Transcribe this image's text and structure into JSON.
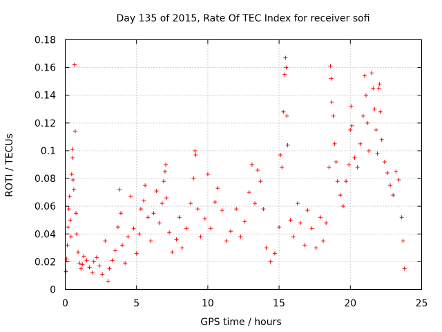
{
  "chart_data": {
    "type": "scatter",
    "title": "Day 135 of 2015, Rate Of TEC Index for receiver sofi",
    "xlabel": "GPS time / hours",
    "ylabel": "ROTI / TECUs",
    "xlim": [
      0,
      25
    ],
    "ylim": [
      0,
      0.18
    ],
    "xticks": [
      "0",
      "5",
      "10",
      "15",
      "20",
      "25"
    ],
    "yticks": [
      "0",
      "0.02",
      "0.04",
      "0.06",
      "0.08",
      "0.1",
      "0.12",
      "0.14",
      "0.16",
      "0.18"
    ],
    "grid": true,
    "marker": "plus",
    "color": "#ff0000",
    "series": [
      {
        "values": [
          [
            0.05,
            0.013
          ],
          [
            0.1,
            0.022
          ],
          [
            0.15,
            0.032
          ],
          [
            0.2,
            0.045
          ],
          [
            0.25,
            0.058
          ],
          [
            0.3,
            0.067
          ],
          [
            0.35,
            0.05
          ],
          [
            0.4,
            0.038
          ],
          [
            0.45,
            0.083
          ],
          [
            0.5,
            0.101
          ],
          [
            0.52,
            0.095
          ],
          [
            0.55,
            0.079
          ],
          [
            0.6,
            0.072
          ],
          [
            0.65,
            0.162
          ],
          [
            0.7,
            0.114
          ],
          [
            0.75,
            0.055
          ],
          [
            0.8,
            0.04
          ],
          [
            0.9,
            0.027
          ],
          [
            1.0,
            0.019
          ],
          [
            1.1,
            0.015
          ],
          [
            1.2,
            0.018
          ],
          [
            1.3,
            0.024
          ],
          [
            1.5,
            0.021
          ],
          [
            1.7,
            0.016
          ],
          [
            1.9,
            0.012
          ],
          [
            2.0,
            0.02
          ],
          [
            2.2,
            0.023
          ],
          [
            2.4,
            0.017
          ],
          [
            2.6,
            0.011
          ],
          [
            2.8,
            0.035
          ],
          [
            3.0,
            0.006
          ],
          [
            3.1,
            0.015
          ],
          [
            3.3,
            0.021
          ],
          [
            3.5,
            0.028
          ],
          [
            3.7,
            0.045
          ],
          [
            3.8,
            0.072
          ],
          [
            3.9,
            0.055
          ],
          [
            4.0,
            0.032
          ],
          [
            4.2,
            0.019
          ],
          [
            4.4,
            0.038
          ],
          [
            4.6,
            0.067
          ],
          [
            4.8,
            0.044
          ],
          [
            5.0,
            0.026
          ],
          [
            5.2,
            0.04
          ],
          [
            5.3,
            0.058
          ],
          [
            5.5,
            0.064
          ],
          [
            5.6,
            0.075
          ],
          [
            5.8,
            0.052
          ],
          [
            6.0,
            0.035
          ],
          [
            6.2,
            0.055
          ],
          [
            6.4,
            0.071
          ],
          [
            6.6,
            0.048
          ],
          [
            6.8,
            0.062
          ],
          [
            6.9,
            0.078
          ],
          [
            7.0,
            0.085
          ],
          [
            7.05,
            0.09
          ],
          [
            7.1,
            0.066
          ],
          [
            7.3,
            0.041
          ],
          [
            7.5,
            0.027
          ],
          [
            7.8,
            0.036
          ],
          [
            8.0,
            0.052
          ],
          [
            8.2,
            0.03
          ],
          [
            8.5,
            0.044
          ],
          [
            8.8,
            0.062
          ],
          [
            9.0,
            0.08
          ],
          [
            9.1,
            0.1
          ],
          [
            9.15,
            0.097
          ],
          [
            9.3,
            0.058
          ],
          [
            9.5,
            0.038
          ],
          [
            9.8,
            0.051
          ],
          [
            10.0,
            0.083
          ],
          [
            10.2,
            0.044
          ],
          [
            10.5,
            0.063
          ],
          [
            10.7,
            0.073
          ],
          [
            11.0,
            0.057
          ],
          [
            11.3,
            0.035
          ],
          [
            11.6,
            0.042
          ],
          [
            12.0,
            0.058
          ],
          [
            12.3,
            0.038
          ],
          [
            12.6,
            0.049
          ],
          [
            12.9,
            0.07
          ],
          [
            13.1,
            0.09
          ],
          [
            13.3,
            0.062
          ],
          [
            13.5,
            0.086
          ],
          [
            13.7,
            0.078
          ],
          [
            13.9,
            0.058
          ],
          [
            14.1,
            0.03
          ],
          [
            14.4,
            0.02
          ],
          [
            14.7,
            0.026
          ],
          [
            15.0,
            0.045
          ],
          [
            15.1,
            0.097
          ],
          [
            15.2,
            0.088
          ],
          [
            15.3,
            0.128
          ],
          [
            15.4,
            0.155
          ],
          [
            15.45,
            0.167
          ],
          [
            15.5,
            0.16
          ],
          [
            15.55,
            0.125
          ],
          [
            15.6,
            0.104
          ],
          [
            15.8,
            0.05
          ],
          [
            16.0,
            0.038
          ],
          [
            16.3,
            0.062
          ],
          [
            16.5,
            0.048
          ],
          [
            16.8,
            0.032
          ],
          [
            17.0,
            0.057
          ],
          [
            17.3,
            0.044
          ],
          [
            17.6,
            0.03
          ],
          [
            17.9,
            0.052
          ],
          [
            18.1,
            0.035
          ],
          [
            18.3,
            0.048
          ],
          [
            18.5,
            0.088
          ],
          [
            18.6,
            0.161
          ],
          [
            18.65,
            0.152
          ],
          [
            18.7,
            0.135
          ],
          [
            18.8,
            0.125
          ],
          [
            18.9,
            0.105
          ],
          [
            19.0,
            0.092
          ],
          [
            19.1,
            0.078
          ],
          [
            19.3,
            0.068
          ],
          [
            19.5,
            0.06
          ],
          [
            19.7,
            0.078
          ],
          [
            19.9,
            0.09
          ],
          [
            20.0,
            0.115
          ],
          [
            20.05,
            0.132
          ],
          [
            20.1,
            0.118
          ],
          [
            20.3,
            0.095
          ],
          [
            20.5,
            0.088
          ],
          [
            20.7,
            0.105
          ],
          [
            20.9,
            0.125
          ],
          [
            21.0,
            0.154
          ],
          [
            21.1,
            0.14
          ],
          [
            21.2,
            0.12
          ],
          [
            21.3,
            0.1
          ],
          [
            21.5,
            0.156
          ],
          [
            21.6,
            0.145
          ],
          [
            21.7,
            0.13
          ],
          [
            21.8,
            0.115
          ],
          [
            21.9,
            0.098
          ],
          [
            22.0,
            0.145
          ],
          [
            22.05,
            0.148
          ],
          [
            22.1,
            0.128
          ],
          [
            22.2,
            0.108
          ],
          [
            22.4,
            0.092
          ],
          [
            22.6,
            0.084
          ],
          [
            22.8,
            0.075
          ],
          [
            23.0,
            0.068
          ],
          [
            23.2,
            0.085
          ],
          [
            23.4,
            0.079
          ],
          [
            23.6,
            0.052
          ],
          [
            23.7,
            0.035
          ],
          [
            23.8,
            0.015
          ]
        ]
      }
    ]
  }
}
